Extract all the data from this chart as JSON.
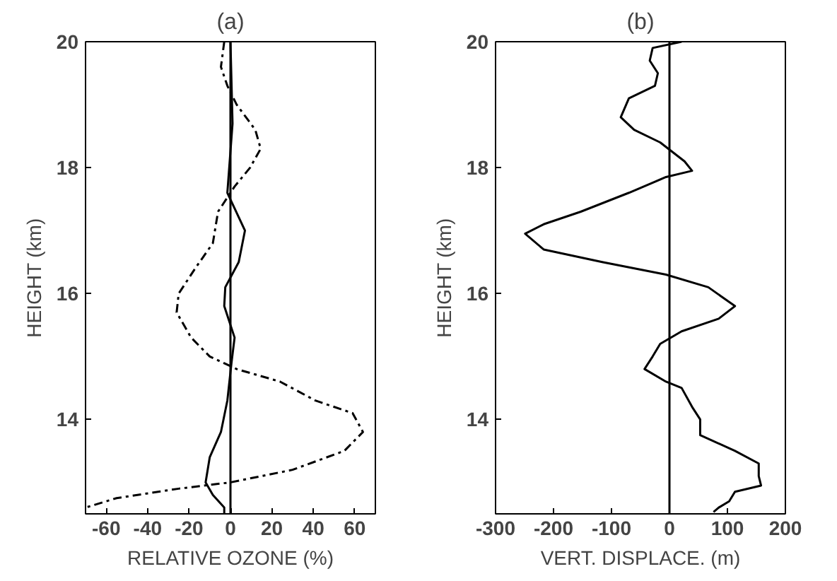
{
  "chart_data": [
    {
      "type": "line",
      "title": "(a)",
      "xlabel": "RELATIVE OZONE (%)",
      "ylabel": "HEIGHT (km)",
      "xlim": [
        -70,
        70
      ],
      "xticks": [
        -60,
        -40,
        -20,
        0,
        20,
        40,
        60
      ],
      "ylim": [
        12.5,
        20
      ],
      "yticks": [
        14,
        16,
        18,
        20
      ],
      "grid": false,
      "ref_lines": [
        {
          "axis": "x",
          "value": 0,
          "color": "#000000"
        }
      ],
      "series": [
        {
          "color": "#000000",
          "line_style": "solid",
          "x": [
            0,
            1,
            -1.5,
            7,
            4,
            -2.5,
            -3,
            2,
            0.5,
            -1.5,
            -4.6,
            -10,
            -12,
            -8.5,
            -3,
            -3
          ],
          "values": [
            20,
            18.7,
            17.6,
            17,
            16.5,
            16.1,
            15.8,
            15.3,
            14.9,
            14.3,
            13.8,
            13.4,
            13.0,
            12.8,
            12.6,
            12.5
          ]
        },
        {
          "color": "#000000",
          "line_style": "dashed",
          "x": [
            -3,
            -4.6,
            -1.5,
            3,
            12,
            14.6,
            9.5,
            2,
            -6,
            -8.5,
            -17,
            -25,
            -26,
            -19,
            -10,
            3,
            24,
            41,
            59,
            64,
            55,
            30,
            0,
            -25,
            -55,
            -70
          ],
          "values": [
            20,
            19.6,
            19.3,
            19.0,
            18.6,
            18.3,
            18.0,
            17.7,
            17.3,
            16.8,
            16.4,
            16.0,
            15.7,
            15.3,
            15.0,
            14.8,
            14.6,
            14.3,
            14.1,
            13.8,
            13.5,
            13.2,
            13.0,
            12.9,
            12.75,
            12.6
          ]
        }
      ]
    },
    {
      "type": "line",
      "title": "(b)",
      "xlabel": "VERT. DISPLACE. (m)",
      "ylabel": "HEIGHT (km)",
      "xlim": [
        -300,
        200
      ],
      "xticks": [
        -300,
        -200,
        -100,
        0,
        100,
        200
      ],
      "ylim": [
        12.5,
        20
      ],
      "yticks": [
        14,
        16,
        18,
        20
      ],
      "grid": false,
      "ref_lines": [
        {
          "axis": "x",
          "value": 0,
          "color": "#000000"
        }
      ],
      "series": [
        {
          "color": "#000000",
          "line_style": "solid",
          "x": [
            21,
            -29,
            -34,
            -20,
            -25,
            -70,
            -84,
            -61,
            -16,
            26,
            39,
            -6,
            -70,
            -153,
            -217,
            -249,
            -217,
            -116,
            -6,
            67,
            113,
            85,
            21,
            -16,
            -29,
            -43,
            -6,
            21,
            39,
            53,
            53,
            113,
            154,
            154,
            158,
            113,
            103,
            85,
            76
          ],
          "values": [
            20,
            19.9,
            19.7,
            19.5,
            19.3,
            19.1,
            18.8,
            18.6,
            18.4,
            18.1,
            17.95,
            17.85,
            17.6,
            17.3,
            17.1,
            16.95,
            16.7,
            16.5,
            16.3,
            16.1,
            15.8,
            15.6,
            15.4,
            15.2,
            15.0,
            14.8,
            14.6,
            14.5,
            14.2,
            14.0,
            13.75,
            13.5,
            13.3,
            13.1,
            12.95,
            12.85,
            12.7,
            12.6,
            12.53
          ]
        }
      ]
    }
  ]
}
